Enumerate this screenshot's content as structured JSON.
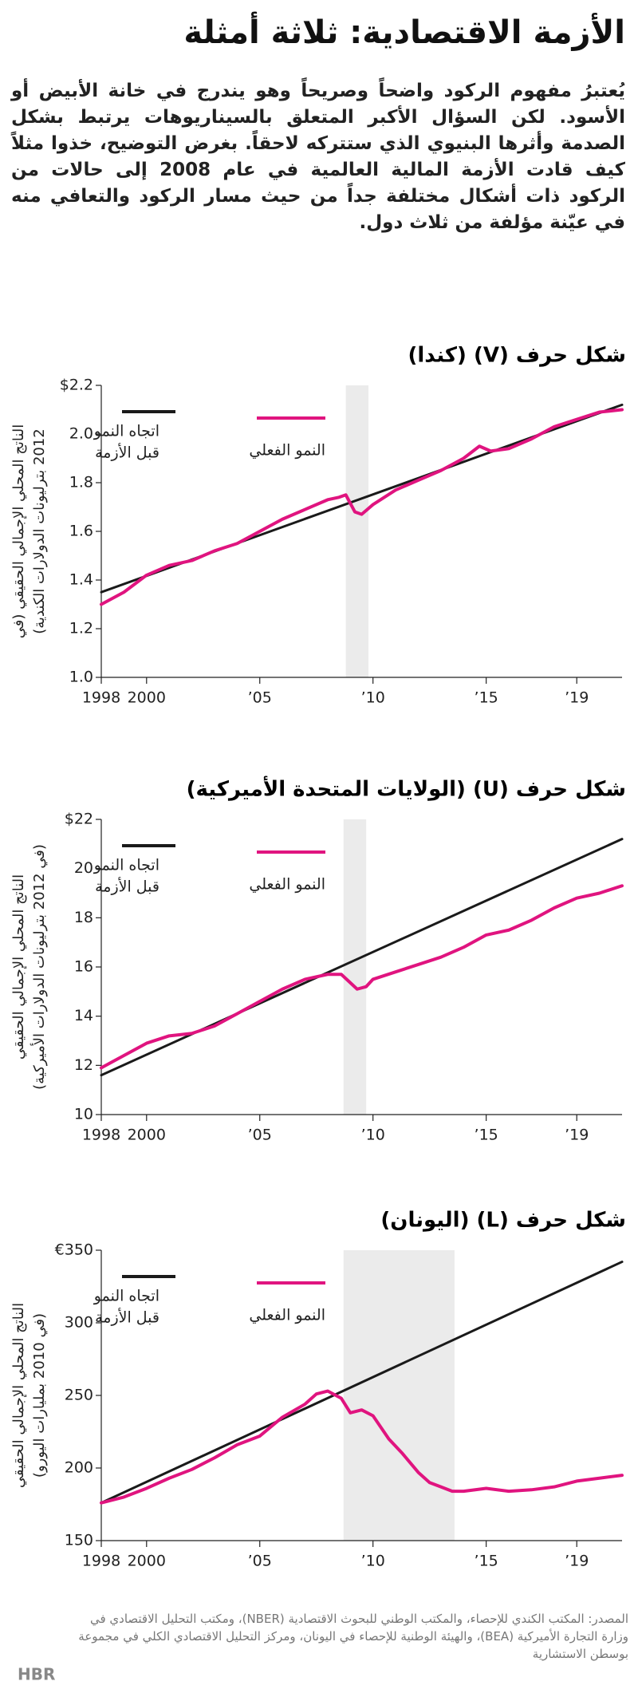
{
  "header": {
    "title": "الأزمة الاقتصادية: ثلاثة أمثلة",
    "intro": "يُعتبرُ مفهوم الركود واضحاً وصريحاً وهو يندرج في خانة الأبيض أو الأسود. لكن السؤال الأكبر المتعلق بالسيناريوهات يرتبط بشكل الصدمة وأثرها البنيوي الذي ستتركه لاحقاً. بغرض التوضيح، خذوا مثلاً كيف قادت الأزمة المالية العالمية في عام 2008 إلى حالات من الركود ذات أشكال مختلفة جداً من حيث مسار الركود والتعافي منه في عيّنة مؤلفة من ثلاث دول."
  },
  "chart_data": [
    {
      "type": "line",
      "title": "شكل حرف (V) (كندا)",
      "ylabel": [
        "الناتج المحلي الإجمالي الحقيقي (في",
        "2012 بترليونات الدولارات الكندية)"
      ],
      "xlim": [
        1998,
        2021
      ],
      "xticks": [
        1998,
        2000,
        {
          "value": 2005,
          "label": "’05"
        },
        {
          "value": 2010,
          "label": "’10"
        },
        {
          "value": 2015,
          "label": "’15"
        },
        {
          "value": 2019,
          "label": "’19"
        }
      ],
      "ylim": [
        1.0,
        2.2
      ],
      "yticks": [
        {
          "value": 2.2,
          "label": "$2.2"
        },
        {
          "value": 2.0,
          "label": "2.0"
        },
        1.8,
        1.6,
        1.4,
        1.2,
        {
          "value": 1.0,
          "label": "1.0"
        }
      ],
      "shade": [
        2008.8,
        2009.8
      ],
      "series": [
        {
          "name": [
            "اتجاه النمو",
            "قبل الأزمة"
          ],
          "color": "#1a1a1a",
          "x": [
            1998,
            2021
          ],
          "values": [
            1.35,
            2.12
          ]
        },
        {
          "name": [
            "النمو الفعلي"
          ],
          "color": "#e0147f",
          "x": [
            1998,
            1999,
            2000,
            2001,
            2002,
            2003,
            2004,
            2005,
            2006,
            2007,
            2008,
            2008.5,
            2008.8,
            2009.2,
            2009.5,
            2010,
            2011,
            2012,
            2013,
            2014,
            2014.7,
            2015.2,
            2016,
            2017,
            2018,
            2019,
            2020,
            2021
          ],
          "values": [
            1.3,
            1.35,
            1.42,
            1.46,
            1.48,
            1.52,
            1.55,
            1.6,
            1.65,
            1.69,
            1.73,
            1.74,
            1.75,
            1.68,
            1.67,
            1.71,
            1.77,
            1.81,
            1.85,
            1.9,
            1.95,
            1.93,
            1.94,
            1.98,
            2.03,
            2.06,
            2.09,
            2.1
          ]
        }
      ]
    },
    {
      "type": "line",
      "title": "شكل حرف (U) (الولايات المتحدة الأميركية)",
      "ylabel": [
        "الناتج المحلي الإجمالي الحقيقي",
        "(في 2012 بترليونات الدولارات الأميركية)"
      ],
      "xlim": [
        1998,
        2021
      ],
      "xticks": [
        1998,
        2000,
        {
          "value": 2005,
          "label": "’05"
        },
        {
          "value": 2010,
          "label": "’10"
        },
        {
          "value": 2015,
          "label": "’15"
        },
        {
          "value": 2019,
          "label": "’19"
        }
      ],
      "ylim": [
        10,
        22
      ],
      "yticks": [
        {
          "value": 22,
          "label": "$22"
        },
        20,
        18,
        16,
        14,
        12,
        10
      ],
      "shade": [
        2008.7,
        2009.7
      ],
      "series": [
        {
          "name": [
            "اتجاه النمو",
            "قبل الأزمة"
          ],
          "color": "#1a1a1a",
          "x": [
            1998,
            2021
          ],
          "values": [
            11.6,
            21.2
          ]
        },
        {
          "name": [
            "النمو الفعلي"
          ],
          "color": "#e0147f",
          "x": [
            1998,
            1999,
            2000,
            2001,
            2002,
            2003,
            2004,
            2005,
            2006,
            2007,
            2008,
            2008.6,
            2009.3,
            2009.7,
            2010,
            2011,
            2012,
            2013,
            2014,
            2015,
            2016,
            2017,
            2018,
            2019,
            2020,
            2021
          ],
          "values": [
            11.9,
            12.4,
            12.9,
            13.2,
            13.3,
            13.6,
            14.1,
            14.6,
            15.1,
            15.5,
            15.7,
            15.7,
            15.1,
            15.2,
            15.5,
            15.8,
            16.1,
            16.4,
            16.8,
            17.3,
            17.5,
            17.9,
            18.4,
            18.8,
            19.0,
            19.3
          ]
        }
      ]
    },
    {
      "type": "line",
      "title": "شكل حرف (L) (اليونان)",
      "ylabel": [
        "الناتج المحلي الإجمالي الحقيقي",
        "(في 2010 بمليارات اليورو)"
      ],
      "xlim": [
        1998,
        2021
      ],
      "xticks": [
        1998,
        2000,
        {
          "value": 2005,
          "label": "’05"
        },
        {
          "value": 2010,
          "label": "’10"
        },
        {
          "value": 2015,
          "label": "’15"
        },
        {
          "value": 2019,
          "label": "’19"
        }
      ],
      "ylim": [
        150,
        350
      ],
      "yticks": [
        {
          "value": 350,
          "label": "€350"
        },
        300,
        250,
        200,
        150
      ],
      "shade": [
        2008.7,
        2013.6
      ],
      "series": [
        {
          "name": [
            "اتجاه النمو",
            "قبل الأزمة"
          ],
          "color": "#1a1a1a",
          "x": [
            1998,
            2021
          ],
          "values": [
            176,
            342
          ]
        },
        {
          "name": [
            "النمو الفعلي"
          ],
          "color": "#e0147f",
          "x": [
            1998,
            1999,
            2000,
            2001,
            2002,
            2003,
            2004,
            2005,
            2006,
            2007,
            2007.5,
            2008,
            2008.6,
            2009,
            2009.5,
            2010,
            2010.7,
            2011.3,
            2012,
            2012.5,
            2013,
            2013.5,
            2014,
            2015,
            2016,
            2017,
            2018,
            2019,
            2020,
            2021
          ],
          "values": [
            176,
            180,
            186,
            193,
            199,
            207,
            216,
            222,
            235,
            244,
            251,
            253,
            248,
            238,
            240,
            236,
            220,
            210,
            197,
            190,
            187,
            184,
            184,
            186,
            184,
            185,
            187,
            191,
            193,
            195
          ]
        }
      ]
    }
  ],
  "footer": {
    "source": "المصدر: المكتب الكندي للإحصاء، والمكتب الوطني للبحوث الاقتصادية (NBER)، ومكتب التحليل الاقتصادي في وزارة التجارة الأميركية (BEA)، والهيئة الوطنية للإحصاء في اليونان، ومركز التحليل الاقتصادي الكلي في مجموعة بوسطن الاستشارية",
    "logo": "HBR"
  }
}
